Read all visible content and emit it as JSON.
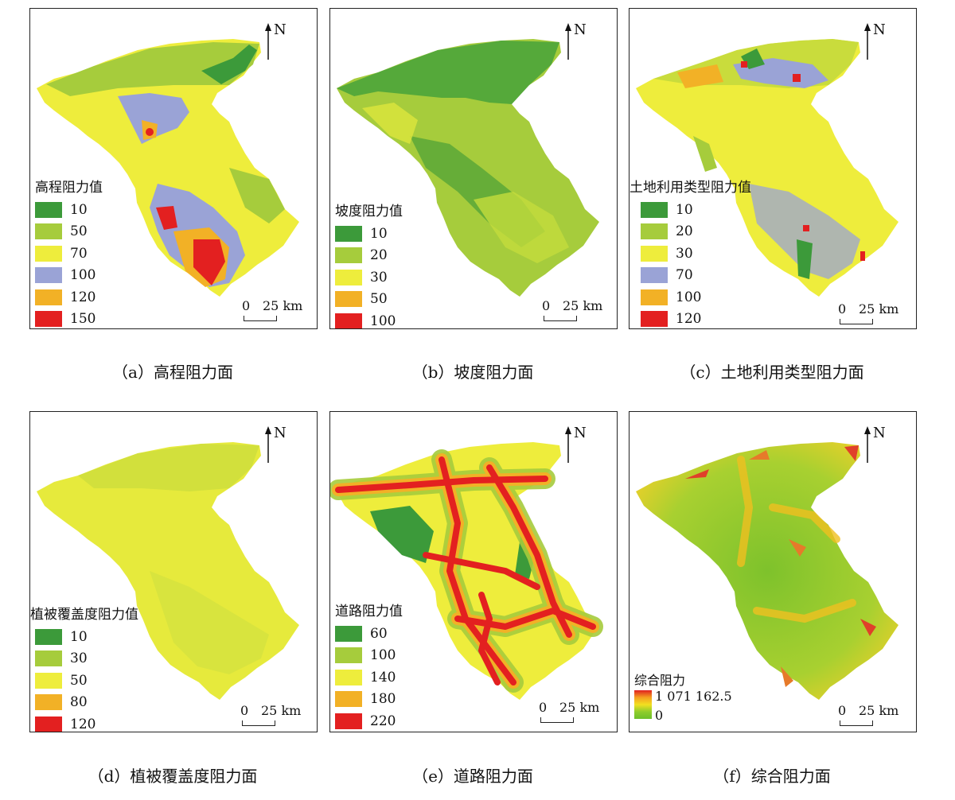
{
  "north_label": "N",
  "scale_zero": "0",
  "scale_label": "25 km",
  "panels": [
    {
      "caption": "（a）高程阻力面",
      "legend_title": "高程阻力值",
      "legend": [
        {
          "label": "10",
          "color": "#3c9a3a"
        },
        {
          "label": "50",
          "color": "#a6cc3c"
        },
        {
          "label": "70",
          "color": "#eeed3c"
        },
        {
          "label": "100",
          "color": "#9aa3d6"
        },
        {
          "label": "120",
          "color": "#f2b126"
        },
        {
          "label": "150",
          "color": "#e32020"
        }
      ]
    },
    {
      "caption": "（b）坡度阻力面",
      "legend_title": "坡度阻力值",
      "legend": [
        {
          "label": "10",
          "color": "#3c9a3a"
        },
        {
          "label": "20",
          "color": "#a6cc3c"
        },
        {
          "label": "30",
          "color": "#eeed3c"
        },
        {
          "label": "50",
          "color": "#f2b126"
        },
        {
          "label": "100",
          "color": "#e32020"
        }
      ]
    },
    {
      "caption": "（c）土地利用类型阻力面",
      "legend_title": "土地利用类型阻力值",
      "legend": [
        {
          "label": "10",
          "color": "#3c9a3a"
        },
        {
          "label": "20",
          "color": "#a6cc3c"
        },
        {
          "label": "30",
          "color": "#eeed3c"
        },
        {
          "label": "70",
          "color": "#9aa3d6"
        },
        {
          "label": "100",
          "color": "#f2b126"
        },
        {
          "label": "120",
          "color": "#e32020"
        }
      ]
    },
    {
      "caption": "（d）植被覆盖度阻力面",
      "legend_title": "植被覆盖度阻力值",
      "legend": [
        {
          "label": "10",
          "color": "#3c9a3a"
        },
        {
          "label": "30",
          "color": "#a6cc3c"
        },
        {
          "label": "50",
          "color": "#eeed3c"
        },
        {
          "label": "80",
          "color": "#f2b126"
        },
        {
          "label": "120",
          "color": "#e32020"
        }
      ]
    },
    {
      "caption": "（e）道路阻力面",
      "legend_title": "道路阻力值",
      "legend": [
        {
          "label": "60",
          "color": "#3c9a3a"
        },
        {
          "label": "100",
          "color": "#a6cc3c"
        },
        {
          "label": "140",
          "color": "#eeed3c"
        },
        {
          "label": "180",
          "color": "#f2b126"
        },
        {
          "label": "220",
          "color": "#e32020"
        }
      ]
    },
    {
      "caption": "（f）综合阻力面",
      "legend_title": "综合阻力",
      "gradient_high": "1 071 162.5",
      "gradient_low": "0"
    }
  ]
}
